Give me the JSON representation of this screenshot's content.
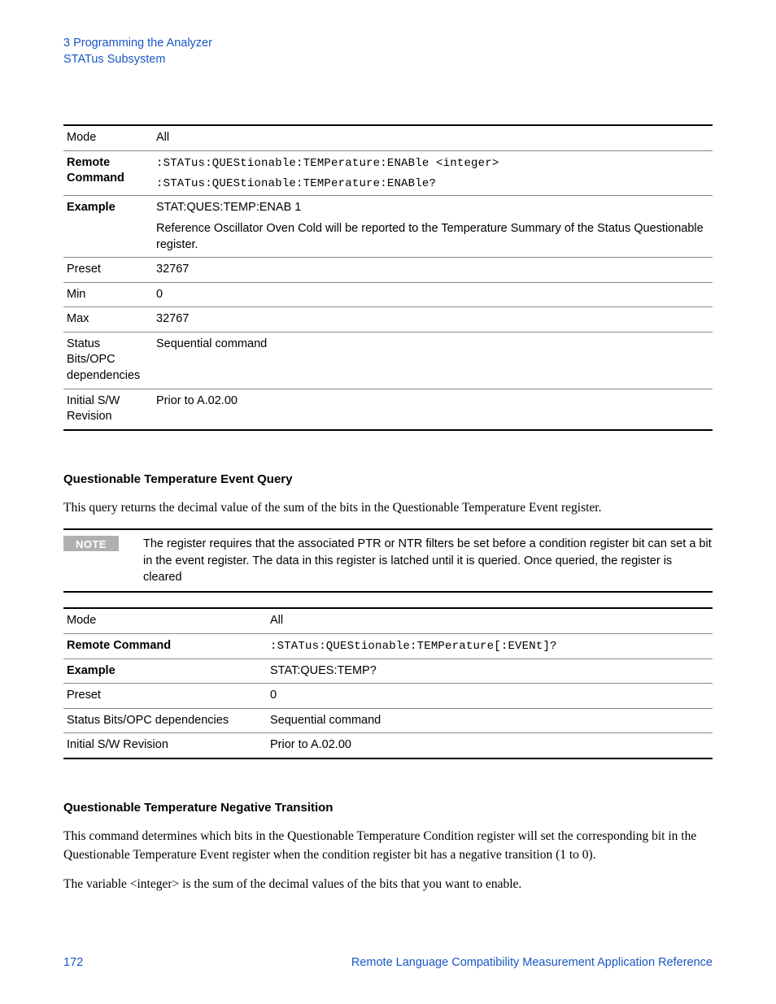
{
  "header": {
    "line1": "3  Programming the Analyzer",
    "line2": "STATus Subsystem"
  },
  "table1": {
    "rows": [
      {
        "label": "Mode",
        "bold": false,
        "values": [
          "All"
        ],
        "mono": [
          false
        ]
      },
      {
        "label": "Remote Command",
        "bold": true,
        "values": [
          ":STATus:QUEStionable:TEMPerature:ENABle <integer>",
          ":STATus:QUEStionable:TEMPerature:ENABle?"
        ],
        "mono": [
          true,
          true
        ]
      },
      {
        "label": "Example",
        "bold": true,
        "values": [
          "STAT:QUES:TEMP:ENAB 1",
          "Reference Oscillator Oven Cold will be reported to the Temperature Summary of the Status Questionable register."
        ],
        "mono": [
          false,
          false
        ]
      },
      {
        "label": "Preset",
        "bold": false,
        "values": [
          "32767"
        ],
        "mono": [
          false
        ]
      },
      {
        "label": "Min",
        "bold": false,
        "values": [
          "0"
        ],
        "mono": [
          false
        ]
      },
      {
        "label": "Max",
        "bold": false,
        "values": [
          "32767"
        ],
        "mono": [
          false
        ]
      },
      {
        "label": "Status Bits/OPC dependencies",
        "bold": false,
        "values": [
          "Sequential command"
        ],
        "mono": [
          false
        ]
      },
      {
        "label": "Initial S/W Revision",
        "bold": false,
        "values": [
          "Prior to A.02.00"
        ],
        "mono": [
          false
        ]
      }
    ]
  },
  "section2": {
    "heading": "Questionable Temperature Event Query",
    "body": "This query returns the decimal value of the sum of the bits in the Questionable Temperature Event register.",
    "note_label": "NOTE",
    "note_text": "The register requires that the associated PTR or NTR filters be set before a condition register bit can set a bit in the event register. The data in this register is latched until it is queried. Once queried, the register is cleared"
  },
  "table2": {
    "rows": [
      {
        "label": "Mode",
        "bold": false,
        "values": [
          "All"
        ],
        "mono": [
          false
        ]
      },
      {
        "label": "Remote Command",
        "bold": true,
        "values": [
          ":STATus:QUEStionable:TEMPerature[:EVENt]?"
        ],
        "mono": [
          true
        ]
      },
      {
        "label": "Example",
        "bold": true,
        "values": [
          "STAT:QUES:TEMP?"
        ],
        "mono": [
          false
        ]
      },
      {
        "label": "Preset",
        "bold": false,
        "values": [
          "0"
        ],
        "mono": [
          false
        ]
      },
      {
        "label": "Status Bits/OPC dependencies",
        "bold": false,
        "values": [
          "Sequential command"
        ],
        "mono": [
          false
        ]
      },
      {
        "label": "Initial S/W Revision",
        "bold": false,
        "values": [
          "Prior to A.02.00"
        ],
        "mono": [
          false
        ]
      }
    ]
  },
  "section3": {
    "heading": "Questionable Temperature Negative Transition",
    "body1": "This command determines which bits in the Questionable Temperature Condition register will set the corresponding bit in the Questionable Temperature Event register when the condition register bit has a negative transition (1 to 0).",
    "body2": "The variable <integer> is the sum of the decimal values of the bits that you want to enable."
  },
  "footer": {
    "page": "172",
    "title": "Remote Language Compatibility Measurement Application Reference"
  }
}
